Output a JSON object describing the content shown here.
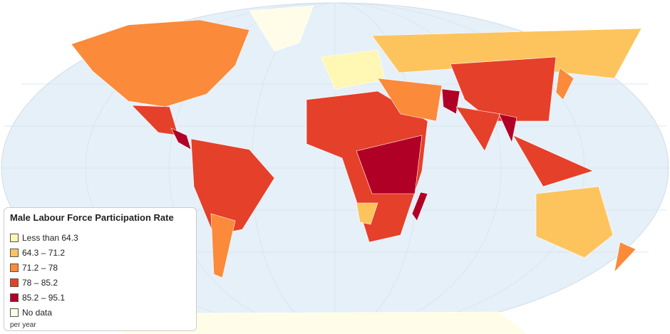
{
  "legend": {
    "title": "Male Labour Force Participation Rate",
    "items": [
      {
        "label": "Less than 64.3",
        "color": "#fff7b3"
      },
      {
        "label": "64.3 – 71.2",
        "color": "#fdc45e"
      },
      {
        "label": "71.2 – 78",
        "color": "#fb8a3a"
      },
      {
        "label": "78 – 85.2",
        "color": "#e5402a"
      },
      {
        "label": "85.2 – 95.1",
        "color": "#b10026"
      },
      {
        "label": "No data",
        "color": "#fffde8"
      }
    ],
    "note": "per year"
  }
}
